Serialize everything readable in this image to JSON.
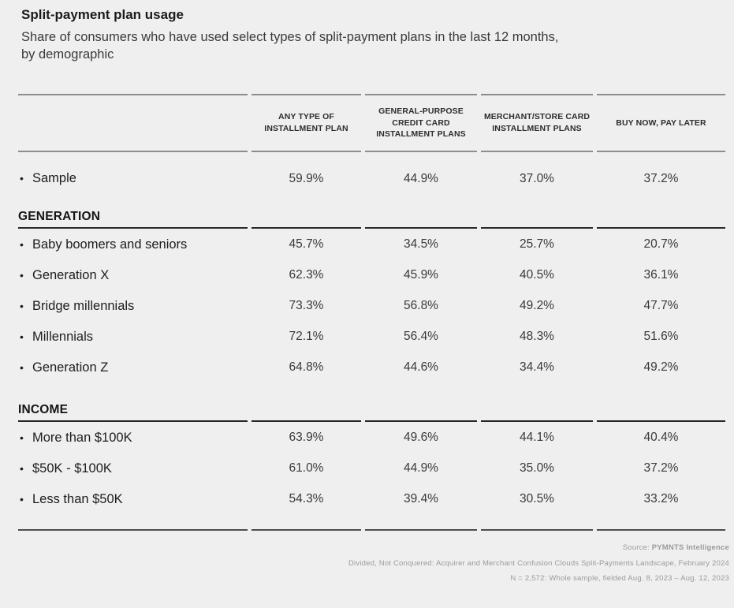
{
  "page": {
    "title": "Split-payment plan usage",
    "subtitle_line1": "Share of consumers who have used select types of split-payment plans in the last 12 months,",
    "subtitle_line2": "by demographic",
    "bullet": "•"
  },
  "chart_data": {
    "type": "table",
    "title": "Split-payment plan usage",
    "subtitle": "Share of consumers who have used select types of split-payment plans in the last 12 months, by demographic",
    "unit": "%",
    "columns": [
      "ANY TYPE OF INSTALLMENT PLAN",
      "GENERAL-PURPOSE CREDIT CARD INSTALLMENT PLANS",
      "MERCHANT/STORE CARD INSTALLMENT PLANS",
      "BUY NOW, PAY LATER"
    ],
    "sections": [
      {
        "heading": "",
        "rows": [
          {
            "label": "Sample",
            "values": [
              59.9,
              44.9,
              37.0,
              37.2
            ],
            "display": [
              "59.9%",
              "44.9%",
              "37.0%",
              "37.2%"
            ]
          }
        ]
      },
      {
        "heading": "GENERATION",
        "rows": [
          {
            "label": "Baby boomers and seniors",
            "values": [
              45.7,
              34.5,
              25.7,
              20.7
            ],
            "display": [
              "45.7%",
              "34.5%",
              "25.7%",
              "20.7%"
            ]
          },
          {
            "label": "Generation X",
            "values": [
              62.3,
              45.9,
              40.5,
              36.1
            ],
            "display": [
              "62.3%",
              "45.9%",
              "40.5%",
              "36.1%"
            ]
          },
          {
            "label": "Bridge millennials",
            "values": [
              73.3,
              56.8,
              49.2,
              47.7
            ],
            "display": [
              "73.3%",
              "56.8%",
              "49.2%",
              "47.7%"
            ]
          },
          {
            "label": "Millennials",
            "values": [
              72.1,
              56.4,
              48.3,
              51.6
            ],
            "display": [
              "72.1%",
              "56.4%",
              "48.3%",
              "51.6%"
            ]
          },
          {
            "label": "Generation Z",
            "values": [
              64.8,
              44.6,
              34.4,
              49.2
            ],
            "display": [
              "64.8%",
              "44.6%",
              "34.4%",
              "49.2%"
            ]
          }
        ]
      },
      {
        "heading": "INCOME",
        "rows": [
          {
            "label": "More than $100K",
            "values": [
              63.9,
              49.6,
              44.1,
              40.4
            ],
            "display": [
              "63.9%",
              "49.6%",
              "44.1%",
              "40.4%"
            ]
          },
          {
            "label": "$50K - $100K",
            "values": [
              61.0,
              44.9,
              35.0,
              37.2
            ],
            "display": [
              "61.0%",
              "44.9%",
              "35.0%",
              "37.2%"
            ]
          },
          {
            "label": "Less than $50K",
            "values": [
              54.3,
              39.4,
              30.5,
              33.2
            ],
            "display": [
              "54.3%",
              "39.4%",
              "30.5%",
              "33.2%"
            ]
          }
        ]
      }
    ]
  },
  "footer": {
    "source_prefix": "Source: ",
    "source_name": "PYMNTS Intelligence",
    "line2": "Divided, Not Conquered: Acquirer and Merchant Confusion Clouds Split-Payments Landscape, February 2024",
    "line3": "N = 2,572: Whole sample, fielded Aug. 8, 2023 – Aug. 12, 2023"
  },
  "colors": {
    "background": "#efefef",
    "rule_gray": "#8d8d8d",
    "rule_dark": "#282828",
    "rule_bottom": "#4d4d4d",
    "title_text": "#1b1b1b",
    "body_text": "#3a3a3a",
    "footer_text": "#9b9b9b"
  }
}
